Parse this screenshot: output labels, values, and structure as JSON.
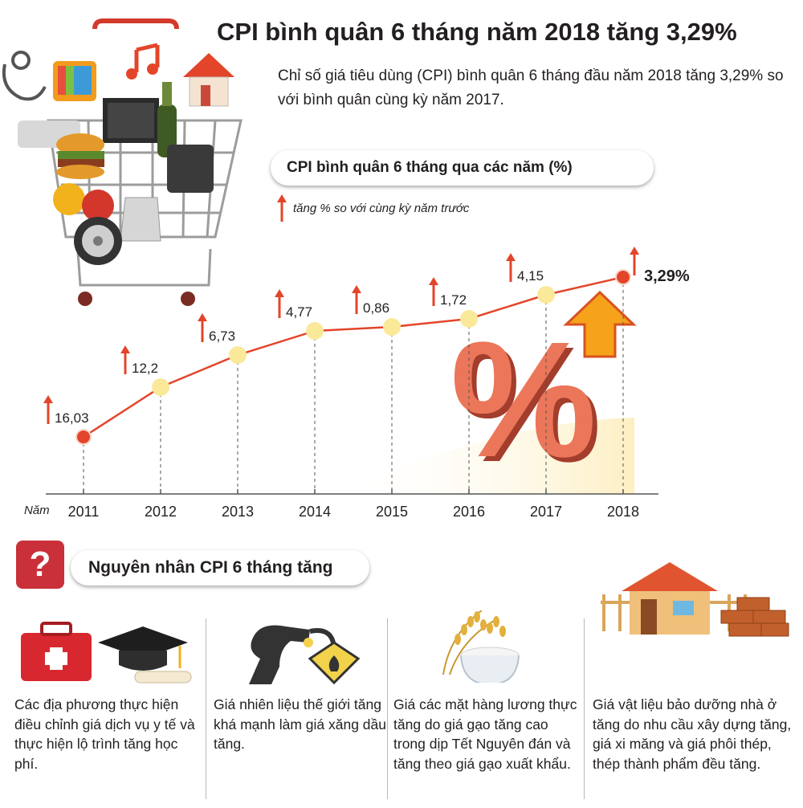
{
  "title": "CPI bình quân 6 tháng năm 2018 tăng 3,29%",
  "subtitle": "Chỉ số giá tiêu dùng (CPI) bình quân 6 tháng đầu năm 2018 tăng 3,29% so với bình quân cùng kỳ năm 2017.",
  "chart_box_title": "CPI bình quân 6 tháng qua các năm (%)",
  "legend_text": "tăng % so với cùng kỳ năm trước",
  "chart_data": {
    "type": "line",
    "title": "CPI bình quân 6 tháng qua các năm (%)",
    "xlabel": "Năm",
    "ylabel": "",
    "categories": [
      "2011",
      "2012",
      "2013",
      "2014",
      "2015",
      "2016",
      "2017",
      "2018"
    ],
    "series": [
      {
        "name": "tăng % so với cùng kỳ năm trước",
        "values": [
          16.03,
          12.2,
          6.73,
          4.77,
          0.86,
          1.72,
          4.15,
          3.29
        ]
      }
    ],
    "labels": [
      "16,03",
      "12,2",
      "6,73",
      "4,77",
      "0,86",
      "1,72",
      "4,15",
      "3,29%"
    ],
    "grid": false,
    "colors": {
      "line": "#e3452a",
      "point": "#fbe99a",
      "highlight": "#e3452a",
      "arrow": "#e3452a"
    }
  },
  "reasons": {
    "header": "Nguyên nhân CPI 6 tháng tăng",
    "icon": "question-icon",
    "items": [
      {
        "icon": "medical-kit-and-graduation-cap-icon",
        "text": "Các địa phương thực hiện điều chỉnh giá dịch vụ y tế và thực hiện lộ trình tăng học phí."
      },
      {
        "icon": "fuel-nozzle-icon",
        "text": "Giá nhiên liệu thế giới tăng khá mạnh làm giá xăng dầu tăng."
      },
      {
        "icon": "rice-bowl-icon",
        "text": "Giá các mặt hàng lương thực tăng do giá gạo tăng cao trong dịp Tết Nguyên đán và tăng theo giá gạo xuất khẩu."
      },
      {
        "icon": "house-and-bricks-icon",
        "text": "Giá vật liệu bảo dưỡng nhà ở tăng do nhu cầu xây dựng tăng, giá xi măng và giá phôi thép, thép thành phẩm đều tăng."
      }
    ]
  },
  "colors": {
    "accent": "#e3452a",
    "question_bg": "#c9303a",
    "gridline": "#666666"
  }
}
